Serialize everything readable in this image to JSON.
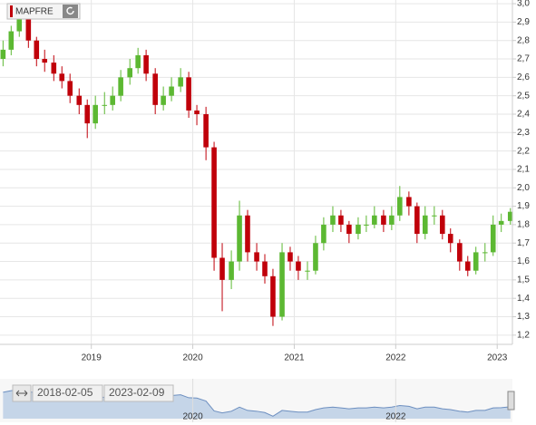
{
  "chart_data": {
    "type": "candlestick",
    "legend": "MAPFRE",
    "up_color": "#5cb832",
    "down_color": "#c0000a",
    "grid": true,
    "xlim": [
      2018.1,
      2023.15
    ],
    "xticks": [
      2019,
      2020,
      2021,
      2022,
      2023
    ],
    "ylim": [
      1.15,
      3.02
    ],
    "yticks": [
      {
        "value": 1.2,
        "label": "1,2"
      },
      {
        "value": 1.3,
        "label": "1,3"
      },
      {
        "value": 1.4,
        "label": "1,4"
      },
      {
        "value": 1.5,
        "label": "1,5"
      },
      {
        "value": 1.6,
        "label": "1,6"
      },
      {
        "value": 1.7,
        "label": "1,7"
      },
      {
        "value": 1.8,
        "label": "1,8"
      },
      {
        "value": 1.9,
        "label": "1,9"
      },
      {
        "value": 2.0,
        "label": "2,0"
      },
      {
        "value": 2.1,
        "label": "2,1"
      },
      {
        "value": 2.2,
        "label": "2,2"
      },
      {
        "value": 2.3,
        "label": "2,3"
      },
      {
        "value": 2.4,
        "label": "2,4"
      },
      {
        "value": 2.5,
        "label": "2,5"
      },
      {
        "value": 2.6,
        "label": "2,6"
      },
      {
        "value": 2.7,
        "label": "2,7"
      },
      {
        "value": 2.8,
        "label": "2,8"
      },
      {
        "value": 2.9,
        "label": "2,9"
      },
      {
        "value": 3.0,
        "label": "3,0"
      }
    ],
    "x": [
      2018.13,
      2018.21,
      2018.29,
      2018.38,
      2018.46,
      2018.54,
      2018.63,
      2018.71,
      2018.79,
      2018.88,
      2018.96,
      2019.04,
      2019.13,
      2019.21,
      2019.29,
      2019.38,
      2019.46,
      2019.54,
      2019.63,
      2019.71,
      2019.79,
      2019.88,
      2019.96,
      2020.04,
      2020.13,
      2020.21,
      2020.29,
      2020.38,
      2020.46,
      2020.54,
      2020.63,
      2020.71,
      2020.79,
      2020.88,
      2020.96,
      2021.04,
      2021.13,
      2021.21,
      2021.29,
      2021.38,
      2021.46,
      2021.54,
      2021.63,
      2021.71,
      2021.79,
      2021.88,
      2021.96,
      2022.04,
      2022.13,
      2022.21,
      2022.29,
      2022.38,
      2022.46,
      2022.54,
      2022.63,
      2022.71,
      2022.79,
      2022.88,
      2022.96,
      2023.04,
      2023.13
    ],
    "open": [
      2.7,
      2.75,
      2.85,
      2.92,
      2.8,
      2.7,
      2.68,
      2.62,
      2.58,
      2.5,
      2.45,
      2.35,
      2.45,
      2.45,
      2.5,
      2.6,
      2.65,
      2.72,
      2.62,
      2.45,
      2.5,
      2.55,
      2.6,
      2.42,
      2.4,
      2.22,
      1.62,
      1.5,
      1.6,
      1.85,
      1.65,
      1.6,
      1.52,
      1.3,
      1.65,
      1.6,
      1.55,
      1.55,
      1.7,
      1.8,
      1.85,
      1.8,
      1.75,
      1.8,
      1.8,
      1.85,
      1.8,
      1.85,
      1.95,
      1.9,
      1.75,
      1.85,
      1.85,
      1.75,
      1.7,
      1.6,
      1.55,
      1.65,
      1.65,
      1.8,
      1.82
    ],
    "high": [
      2.8,
      2.88,
      2.97,
      2.94,
      2.82,
      2.75,
      2.72,
      2.66,
      2.62,
      2.54,
      2.48,
      2.5,
      2.52,
      2.55,
      2.64,
      2.7,
      2.76,
      2.75,
      2.65,
      2.55,
      2.6,
      2.65,
      2.63,
      2.45,
      2.44,
      2.25,
      1.7,
      1.66,
      1.93,
      1.88,
      1.7,
      1.64,
      1.56,
      1.7,
      1.68,
      1.63,
      1.6,
      1.74,
      1.84,
      1.9,
      1.88,
      1.82,
      1.84,
      1.85,
      1.9,
      1.88,
      1.9,
      2.01,
      1.98,
      1.92,
      1.9,
      1.9,
      1.88,
      1.78,
      1.72,
      1.63,
      1.68,
      1.7,
      1.85,
      1.86,
      1.89
    ],
    "low": [
      2.66,
      2.72,
      2.82,
      2.76,
      2.66,
      2.63,
      2.58,
      2.54,
      2.46,
      2.4,
      2.27,
      2.32,
      2.4,
      2.42,
      2.47,
      2.56,
      2.62,
      2.58,
      2.4,
      2.42,
      2.47,
      2.52,
      2.38,
      2.34,
      2.15,
      1.55,
      1.33,
      1.45,
      1.55,
      1.6,
      1.55,
      1.48,
      1.25,
      1.28,
      1.55,
      1.5,
      1.5,
      1.53,
      1.66,
      1.76,
      1.76,
      1.7,
      1.72,
      1.76,
      1.78,
      1.76,
      1.77,
      1.82,
      1.85,
      1.7,
      1.72,
      1.8,
      1.72,
      1.65,
      1.55,
      1.52,
      1.53,
      1.6,
      1.63,
      1.76,
      1.8
    ],
    "close": [
      2.75,
      2.85,
      2.92,
      2.8,
      2.7,
      2.68,
      2.62,
      2.58,
      2.5,
      2.45,
      2.35,
      2.45,
      2.45,
      2.5,
      2.6,
      2.65,
      2.72,
      2.62,
      2.45,
      2.5,
      2.55,
      2.6,
      2.42,
      2.4,
      2.22,
      1.62,
      1.5,
      1.6,
      1.85,
      1.65,
      1.6,
      1.52,
      1.3,
      1.65,
      1.6,
      1.55,
      1.55,
      1.7,
      1.8,
      1.85,
      1.8,
      1.75,
      1.8,
      1.8,
      1.85,
      1.8,
      1.85,
      1.95,
      1.9,
      1.75,
      1.85,
      1.85,
      1.75,
      1.7,
      1.6,
      1.55,
      1.65,
      1.65,
      1.8,
      1.82,
      1.87
    ],
    "navigator": {
      "from": "2018-02-05",
      "to": "2023-02-09",
      "xticks": [
        2020,
        2022
      ]
    }
  }
}
